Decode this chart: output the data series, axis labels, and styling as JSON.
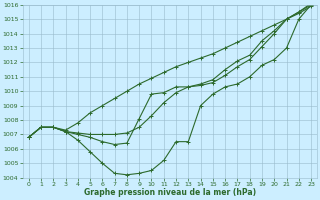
{
  "x": [
    0,
    1,
    2,
    3,
    4,
    5,
    6,
    7,
    8,
    9,
    10,
    11,
    12,
    13,
    14,
    15,
    16,
    17,
    18,
    19,
    20,
    21,
    22,
    23
  ],
  "line_deepdip": [
    1006.8,
    1007.5,
    1007.5,
    1007.2,
    1006.6,
    1005.8,
    1005.0,
    1004.3,
    1004.2,
    1004.3,
    1004.5,
    1005.2,
    1006.5,
    1006.5,
    1009.0,
    1009.8,
    1010.3,
    1010.5,
    1011.0,
    1011.8,
    1012.2,
    1013.0,
    1015.0,
    1016.0
  ],
  "line_meddip": [
    1006.8,
    1007.5,
    1007.5,
    1007.2,
    1007.0,
    1006.8,
    1006.5,
    1006.3,
    1006.4,
    1008.1,
    1009.8,
    1009.9,
    1010.3,
    1010.3,
    1010.5,
    1010.8,
    1011.5,
    1012.1,
    1012.5,
    1013.5,
    1014.2,
    1015.0,
    1015.5,
    1016.0
  ],
  "line_straight": [
    1006.8,
    1007.5,
    1007.5,
    1007.3,
    1007.8,
    1008.5,
    1009.0,
    1009.5,
    1010.0,
    1010.5,
    1010.9,
    1011.3,
    1011.7,
    1012.0,
    1012.3,
    1012.6,
    1013.0,
    1013.4,
    1013.8,
    1014.2,
    1014.6,
    1015.0,
    1015.5,
    1016.1
  ],
  "line_smooth": [
    1006.8,
    1007.5,
    1007.5,
    1007.2,
    1007.1,
    1007.0,
    1007.0,
    1007.0,
    1007.1,
    1007.5,
    1008.3,
    1009.2,
    1009.9,
    1010.3,
    1010.4,
    1010.6,
    1011.1,
    1011.7,
    1012.2,
    1013.1,
    1014.0,
    1015.0,
    1015.4,
    1015.9
  ],
  "bg_color": "#cceeff",
  "grid_color": "#99bbcc",
  "line_color": "#2d6a2d",
  "xlabel": "Graphe pression niveau de la mer (hPa)",
  "ylim": [
    1004,
    1016
  ],
  "yticks": [
    1004,
    1005,
    1006,
    1007,
    1008,
    1009,
    1010,
    1011,
    1012,
    1013,
    1014,
    1015,
    1016
  ],
  "xticks": [
    0,
    1,
    2,
    3,
    4,
    5,
    6,
    7,
    8,
    9,
    10,
    11,
    12,
    13,
    14,
    15,
    16,
    17,
    18,
    19,
    20,
    21,
    22,
    23
  ],
  "figw": 3.2,
  "figh": 2.0,
  "dpi": 100
}
